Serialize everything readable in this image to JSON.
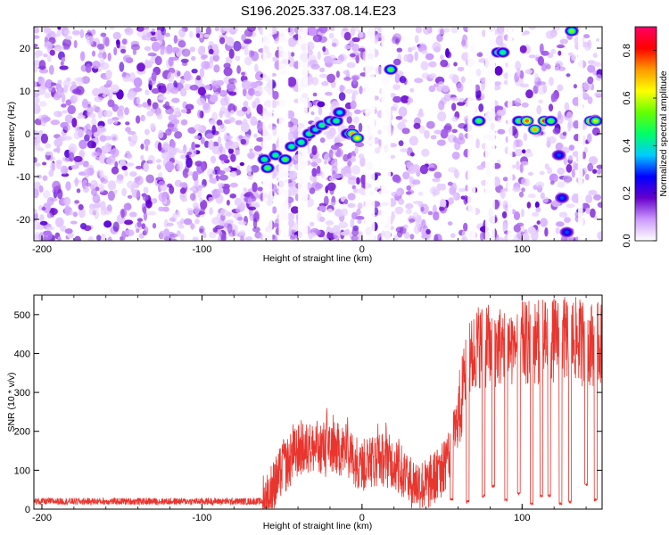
{
  "title": "S196.2025.337.08.14.E23",
  "chart_data": [
    {
      "type": "heatmap",
      "title": "S196.2025.337.08.14.E23",
      "xlabel": "Height of straight line (km)",
      "ylabel": "Frequency (Hz)",
      "xlim": [
        -205,
        150
      ],
      "ylim": [
        -25,
        25
      ],
      "x_ticks": [
        -200,
        -100,
        0,
        100
      ],
      "y_ticks": [
        -20,
        -10,
        0,
        10,
        20
      ],
      "colorbar": {
        "label": "Normalized spectral amplitude",
        "range": [
          0,
          0.9
        ],
        "ticks": [
          0,
          0.2,
          0.4,
          0.6,
          0.8
        ],
        "colors": [
          "#ffffff",
          "#cc99ff",
          "#6600cc",
          "#0000ff",
          "#00ccff",
          "#00ff66",
          "#66ff00",
          "#ffff00",
          "#ff9900",
          "#ff0000",
          "#ff0066"
        ]
      },
      "blank_x_ranges": [
        [
          -62,
          -56
        ],
        [
          -52,
          -46
        ],
        [
          -40,
          -34
        ],
        [
          2,
          8
        ],
        [
          12,
          18
        ],
        [
          66,
          71
        ],
        [
          77,
          83
        ],
        [
          91,
          94
        ],
        [
          135,
          138
        ]
      ],
      "features": [
        {
          "x": -61,
          "y": -6,
          "amp": 0.45
        },
        {
          "x": -59,
          "y": -8,
          "amp": 0.5
        },
        {
          "x": -54,
          "y": -5,
          "amp": 0.45
        },
        {
          "x": -48,
          "y": -6,
          "amp": 0.5
        },
        {
          "x": -44,
          "y": -3,
          "amp": 0.45
        },
        {
          "x": -38,
          "y": -2,
          "amp": 0.45
        },
        {
          "x": -33,
          "y": 0,
          "amp": 0.45
        },
        {
          "x": -29,
          "y": 1,
          "amp": 0.4
        },
        {
          "x": -25,
          "y": 2,
          "amp": 0.45
        },
        {
          "x": -20,
          "y": 3,
          "amp": 0.45
        },
        {
          "x": -16,
          "y": 3,
          "amp": 0.45
        },
        {
          "x": -14,
          "y": 5,
          "amp": 0.4
        },
        {
          "x": -9,
          "y": 0,
          "amp": 0.4
        },
        {
          "x": -6,
          "y": 0,
          "amp": 0.7
        },
        {
          "x": -3,
          "y": -1,
          "amp": 0.65
        },
        {
          "x": 18,
          "y": 15,
          "amp": 0.5
        },
        {
          "x": 73,
          "y": 3,
          "amp": 0.5
        },
        {
          "x": 85,
          "y": 19,
          "amp": 0.5
        },
        {
          "x": 88,
          "y": 19,
          "amp": 0.45
        },
        {
          "x": 98,
          "y": 3,
          "amp": 0.5
        },
        {
          "x": 103,
          "y": 3,
          "amp": 0.75
        },
        {
          "x": 108,
          "y": 1,
          "amp": 0.7
        },
        {
          "x": 114,
          "y": 3,
          "amp": 0.8
        },
        {
          "x": 118,
          "y": 3,
          "amp": 0.5
        },
        {
          "x": 123,
          "y": -5,
          "amp": 0.3
        },
        {
          "x": 125,
          "y": -15,
          "amp": 0.3
        },
        {
          "x": 128,
          "y": -23,
          "amp": 0.3
        },
        {
          "x": 131,
          "y": 24,
          "amp": 0.55
        },
        {
          "x": 143,
          "y": 3,
          "amp": 0.8
        },
        {
          "x": 146,
          "y": 3,
          "amp": 0.6
        }
      ]
    },
    {
      "type": "line",
      "xlabel": "Height of straight line (km)",
      "ylabel": "SNR (10 * v/v)",
      "xlim": [
        -205,
        150
      ],
      "ylim": [
        0,
        550
      ],
      "x_ticks": [
        -200,
        -100,
        0,
        100
      ],
      "y_ticks": [
        0,
        100,
        200,
        300,
        400,
        500
      ],
      "color": "#e8352e",
      "baseline_level": 20,
      "knots": [
        {
          "x": -205,
          "y": 20
        },
        {
          "x": -62,
          "y": 20
        },
        {
          "x": -55,
          "y": 60
        },
        {
          "x": -50,
          "y": 100
        },
        {
          "x": -40,
          "y": 150
        },
        {
          "x": -25,
          "y": 160
        },
        {
          "x": -10,
          "y": 150
        },
        {
          "x": 0,
          "y": 110
        },
        {
          "x": 10,
          "y": 130
        },
        {
          "x": 20,
          "y": 120
        },
        {
          "x": 30,
          "y": 70
        },
        {
          "x": 40,
          "y": 60
        },
        {
          "x": 50,
          "y": 100
        },
        {
          "x": 55,
          "y": 150
        },
        {
          "x": 60,
          "y": 230
        },
        {
          "x": 65,
          "y": 350
        },
        {
          "x": 72,
          "y": 420
        },
        {
          "x": 90,
          "y": 420
        },
        {
          "x": 110,
          "y": 430
        },
        {
          "x": 130,
          "y": 440
        },
        {
          "x": 150,
          "y": 420
        }
      ],
      "peaks": [
        {
          "x": -49,
          "y": 205
        },
        {
          "x": -43,
          "y": 240
        },
        {
          "x": -38,
          "y": 245
        },
        {
          "x": -33,
          "y": 215
        },
        {
          "x": -27,
          "y": 245
        },
        {
          "x": -22,
          "y": 285
        },
        {
          "x": -18,
          "y": 270
        },
        {
          "x": -9,
          "y": 240
        },
        {
          "x": -1,
          "y": 190
        },
        {
          "x": 5,
          "y": 200
        },
        {
          "x": 10,
          "y": 245
        },
        {
          "x": 15,
          "y": 250
        },
        {
          "x": 23,
          "y": 200
        },
        {
          "x": 28,
          "y": 150
        },
        {
          "x": 48,
          "y": 155
        },
        {
          "x": 53,
          "y": 180
        },
        {
          "x": 64,
          "y": 410
        },
        {
          "x": 68,
          "y": 475
        },
        {
          "x": 75,
          "y": 525
        },
        {
          "x": 80,
          "y": 505
        },
        {
          "x": 88,
          "y": 520
        },
        {
          "x": 95,
          "y": 505
        },
        {
          "x": 104,
          "y": 505
        },
        {
          "x": 113,
          "y": 500
        },
        {
          "x": 120,
          "y": 520
        },
        {
          "x": 130,
          "y": 530
        },
        {
          "x": 138,
          "y": 510
        },
        {
          "x": 145,
          "y": 505
        }
      ],
      "dropouts": [
        {
          "x": 56,
          "y": 20
        },
        {
          "x": 66,
          "y": 15
        },
        {
          "x": 76,
          "y": 30
        },
        {
          "x": 82,
          "y": 55
        },
        {
          "x": 90,
          "y": 20
        },
        {
          "x": 98,
          "y": 35
        },
        {
          "x": 106,
          "y": 10
        },
        {
          "x": 112,
          "y": 30
        },
        {
          "x": 117,
          "y": 30
        },
        {
          "x": 124,
          "y": 10
        },
        {
          "x": 130,
          "y": 15
        },
        {
          "x": 140,
          "y": 60
        },
        {
          "x": 146,
          "y": 20
        }
      ]
    }
  ]
}
